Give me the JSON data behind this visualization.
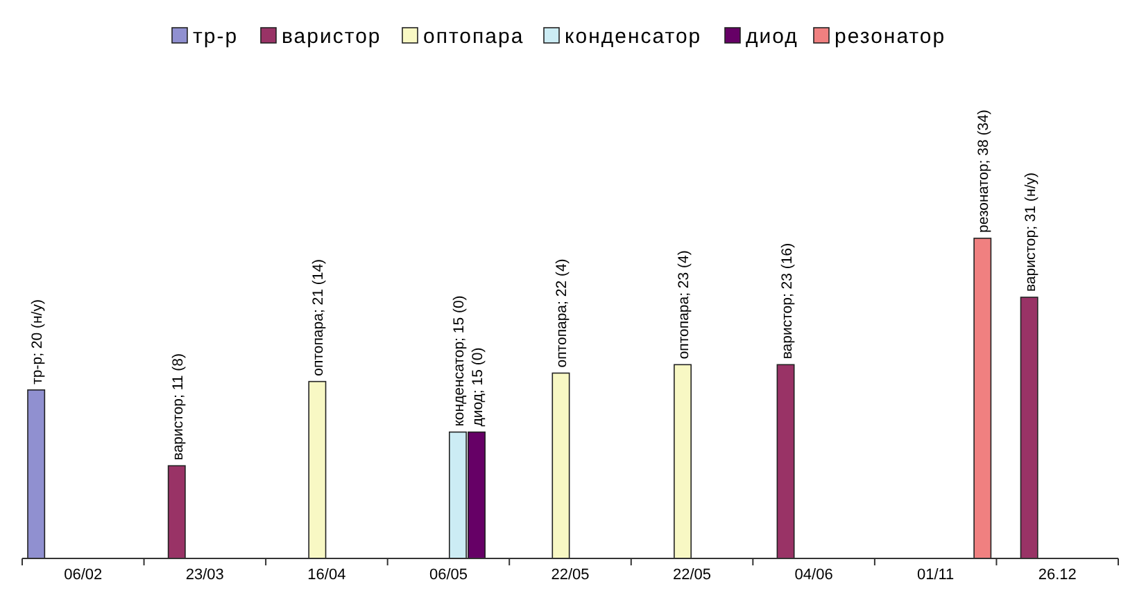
{
  "chart_data": {
    "type": "bar",
    "categories": [
      "06/02",
      "23/03",
      "16/04",
      "06/05",
      "22/05",
      "22/05",
      "04/06",
      "01/11",
      "26.12"
    ],
    "series": [
      {
        "name": "тр-р",
        "color": "#9090d0",
        "values": [
          20,
          null,
          null,
          null,
          null,
          null,
          null,
          null,
          null
        ],
        "value_labels": [
          "тр-р; 20 (н/у)",
          null,
          null,
          null,
          null,
          null,
          null,
          null,
          null
        ]
      },
      {
        "name": "варистор",
        "color": "#993366",
        "values": [
          null,
          11,
          null,
          null,
          null,
          null,
          23,
          null,
          31
        ],
        "value_labels": [
          null,
          "варистор; 11 (8)",
          null,
          null,
          null,
          null,
          "варистор; 23 (16)",
          null,
          "варистор; 31 (н/у)"
        ]
      },
      {
        "name": "оптопара",
        "color": "#f8f8c4",
        "values": [
          null,
          null,
          21,
          null,
          22,
          23,
          null,
          null,
          null
        ],
        "value_labels": [
          null,
          null,
          "оптопара; 21 (14)",
          null,
          "оптопара; 22 (4)",
          "оптопара; 23 (4)",
          null,
          null,
          null
        ]
      },
      {
        "name": "конденсатор",
        "color": "#ccecf4",
        "values": [
          null,
          null,
          null,
          15,
          null,
          null,
          null,
          null,
          null
        ],
        "value_labels": [
          null,
          null,
          null,
          "конденсатор; 15 (0)",
          null,
          null,
          null,
          null,
          null
        ]
      },
      {
        "name": "диод",
        "color": "#660066",
        "values": [
          null,
          null,
          null,
          15,
          null,
          null,
          null,
          null,
          null
        ],
        "value_labels": [
          null,
          null,
          null,
          "диод; 15 (0)",
          null,
          null,
          null,
          null,
          null
        ]
      },
      {
        "name": "резонатор",
        "color": "#f08080",
        "values": [
          null,
          null,
          null,
          null,
          null,
          null,
          null,
          38,
          null
        ],
        "value_labels": [
          null,
          null,
          null,
          null,
          null,
          null,
          null,
          "резонатор; 38 (34)",
          null
        ]
      }
    ],
    "legend": "top"
  }
}
